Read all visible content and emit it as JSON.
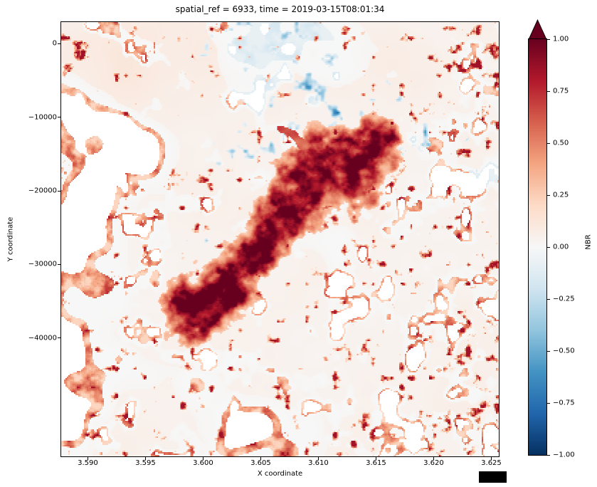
{
  "figure": {
    "title": "spatial_ref = 6933, time = 2019-03-15T08:01:34",
    "xlabel": "X coordinate",
    "ylabel": "Y coordinate"
  },
  "axes": {
    "x_tick_labels": [
      "3.590",
      "3.595",
      "3.600",
      "3.605",
      "3.610",
      "3.615",
      "3.620",
      "3.625"
    ],
    "x_tick_values": [
      3590000,
      3595000,
      3600000,
      3605000,
      3610000,
      3615000,
      3620000,
      3625000
    ],
    "y_tick_labels": [
      "0",
      "−10000",
      "−20000",
      "−30000",
      "−40000"
    ],
    "y_tick_values": [
      0,
      -10000,
      -20000,
      -30000,
      -40000
    ],
    "x_range": [
      3587690,
      3625650
    ],
    "y_range": [
      2900,
      -56040
    ],
    "offset_box_present": true
  },
  "colorbar": {
    "label": "NBR",
    "tick_labels": [
      "1.00",
      "0.75",
      "0.50",
      "0.25",
      "0.00",
      "−0.25",
      "−0.50",
      "−0.75",
      "−1.00"
    ],
    "tick_values": [
      1,
      0.75,
      0.5,
      0.25,
      0,
      -0.25,
      -0.5,
      -0.75,
      -1
    ],
    "vmin": -1,
    "vmax": 1,
    "extend": "max",
    "colormap": "RdBu_r",
    "stops": [
      "#67001f",
      "#b2182b",
      "#d6604d",
      "#f4a582",
      "#fddbc7",
      "#f7f7f7",
      "#d1e5f0",
      "#92c5de",
      "#4393c3",
      "#2166ac",
      "#053061"
    ]
  },
  "chart_data": {
    "type": "heatmap",
    "title": "spatial_ref = 6933, time = 2019-03-15T08:01:34",
    "xlabel": "X coordinate",
    "ylabel": "Y coordinate",
    "value_label": "NBR",
    "value_range": [
      -1,
      1
    ],
    "colormap": "RdBu_r",
    "x_range": [
      3587690,
      3625650
    ],
    "y_range": [
      -56040,
      2900
    ],
    "x_tick_values": [
      3590000,
      3595000,
      3600000,
      3605000,
      3610000,
      3615000,
      3620000,
      3625000
    ],
    "y_tick_values": [
      0,
      -10000,
      -20000,
      -30000,
      -40000
    ],
    "grid": false,
    "legend": "colorbar-right",
    "features": [
      {
        "name": "burn-scar",
        "description": "elongated dark-red high-NBR burn scar running diagonally from lower-left-center to upper-right-center",
        "nbr": "0.5 to 1.0",
        "extent_x": [
          3597000,
          3613500
        ],
        "extent_y": [
          -33500,
          -11500
        ]
      },
      {
        "name": "background",
        "description": "pale near-zero NBR matrix",
        "nbr": "0.0 to 0.1"
      },
      {
        "name": "no-data-patches",
        "description": "pure-white masked patches, largest in the lower-left quadrant, small cells across right and bottom"
      },
      {
        "name": "orange-filaments",
        "description": "moderate-NBR filaments rimming the white patches, densest along map edges",
        "nbr": "0.2 to 0.6"
      },
      {
        "name": "blue-specks",
        "description": "small negative-NBR specks along the top-centre and right of scar",
        "nbr": "-0.1 to -0.3"
      }
    ],
    "render_model": {
      "scar_path": [
        [
          0.296,
          0.667,
          0.07
        ],
        [
          0.34,
          0.638,
          0.082
        ],
        [
          0.397,
          0.589,
          0.058
        ],
        [
          0.446,
          0.523,
          0.052
        ],
        [
          0.502,
          0.449,
          0.06
        ],
        [
          0.559,
          0.384,
          0.09
        ],
        [
          0.624,
          0.334,
          0.105
        ],
        [
          0.689,
          0.302,
          0.082
        ],
        [
          0.738,
          0.269,
          0.04
        ]
      ],
      "scar_tail": [
        [
          0.5,
          0.245,
          0.008
        ],
        [
          0.53,
          0.258,
          0.009
        ],
        [
          0.557,
          0.287,
          0.012
        ]
      ],
      "white_large": [
        [
          0.1,
          0.5,
          0.1,
          0.16,
          1.0
        ],
        [
          0.16,
          0.82,
          0.14,
          0.13,
          1.0
        ],
        [
          0.33,
          0.95,
          0.12,
          0.07,
          0.8
        ],
        [
          0.14,
          0.27,
          0.05,
          0.05,
          0.7
        ],
        [
          0.6,
          0.05,
          0.1,
          0.04,
          0.5
        ]
      ],
      "white_small": [
        [
          0.92,
          0.45,
          0.1,
          0.25,
          0.9
        ],
        [
          0.85,
          0.85,
          0.18,
          0.12,
          1.0
        ],
        [
          0.6,
          0.92,
          0.12,
          0.08,
          0.8
        ],
        [
          0.95,
          0.15,
          0.07,
          0.1,
          0.8
        ],
        [
          0.88,
          0.28,
          0.08,
          0.08,
          0.6
        ],
        [
          0.78,
          0.7,
          0.12,
          0.12,
          0.7
        ],
        [
          0.13,
          0.65,
          0.1,
          0.1,
          0.6
        ],
        [
          0.05,
          0.3,
          0.06,
          0.1,
          0.5
        ],
        [
          0.3,
          0.8,
          0.1,
          0.08,
          0.6
        ]
      ],
      "speckle": [
        [
          0.04,
          0.05,
          0.1,
          0.08,
          0.9
        ],
        [
          0.0,
          0.5,
          0.05,
          0.25,
          0.6
        ],
        [
          0.2,
          0.9,
          0.18,
          0.1,
          0.7
        ],
        [
          0.6,
          0.97,
          0.15,
          0.06,
          0.5
        ],
        [
          0.88,
          0.82,
          0.14,
          0.14,
          0.8
        ],
        [
          0.97,
          0.38,
          0.06,
          0.3,
          0.7
        ],
        [
          0.93,
          0.06,
          0.09,
          0.07,
          0.9
        ],
        [
          0.64,
          0.7,
          0.035,
          0.045,
          1.0
        ],
        [
          0.8,
          0.47,
          0.09,
          0.08,
          0.45
        ]
      ],
      "blue": [
        [
          0.5,
          0.08,
          0.14,
          0.07,
          1.0
        ],
        [
          0.62,
          0.22,
          0.1,
          0.08,
          0.8
        ],
        [
          0.42,
          0.3,
          0.08,
          0.06,
          0.5
        ],
        [
          0.75,
          0.27,
          0.06,
          0.05,
          0.8
        ],
        [
          0.3,
          0.55,
          0.08,
          0.08,
          0.4
        ],
        [
          0.97,
          0.33,
          0.05,
          0.07,
          0.6
        ]
      ],
      "warm_wash": [
        [
          0.35,
          0.06,
          0.35,
          0.1,
          0.6
        ],
        [
          0.15,
          0.1,
          0.15,
          0.1,
          0.5
        ]
      ]
    }
  }
}
